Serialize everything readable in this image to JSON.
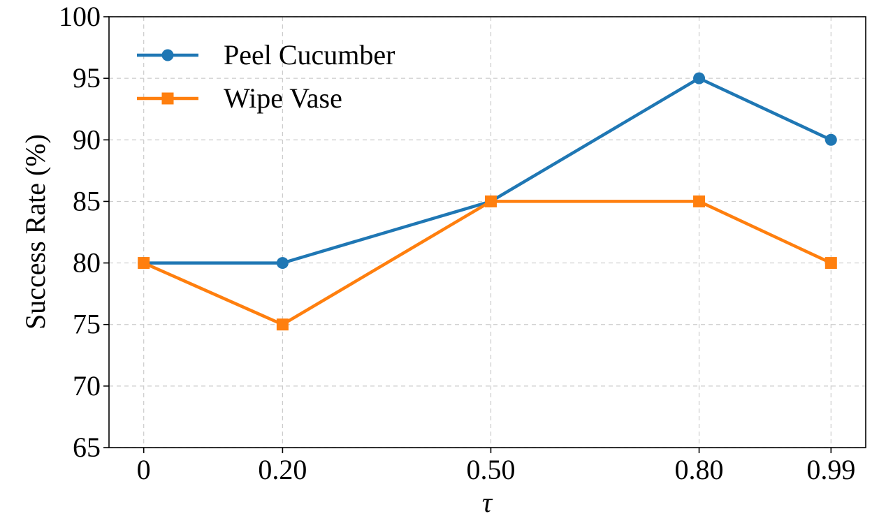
{
  "chart_data": {
    "type": "line",
    "title": "",
    "xlabel": "τ",
    "ylabel": "Success Rate (%)",
    "x": [
      "0",
      "0.20",
      "0.50",
      "0.80",
      "0.99"
    ],
    "x_values": [
      0,
      0.2,
      0.5,
      0.8,
      0.99
    ],
    "xlim": [
      -0.05,
      1.04
    ],
    "ylim": [
      65,
      100
    ],
    "yticks": [
      65,
      70,
      75,
      80,
      85,
      90,
      95,
      100
    ],
    "grid": true,
    "legend_position": "top-left",
    "series": [
      {
        "name": "Peel Cucumber",
        "values": [
          80,
          80,
          85,
          95,
          90
        ],
        "color": "#1f77b4",
        "marker": "circle"
      },
      {
        "name": "Wipe Vase",
        "values": [
          80,
          75,
          85,
          85,
          80
        ],
        "color": "#ff7f0e",
        "marker": "square"
      }
    ]
  }
}
